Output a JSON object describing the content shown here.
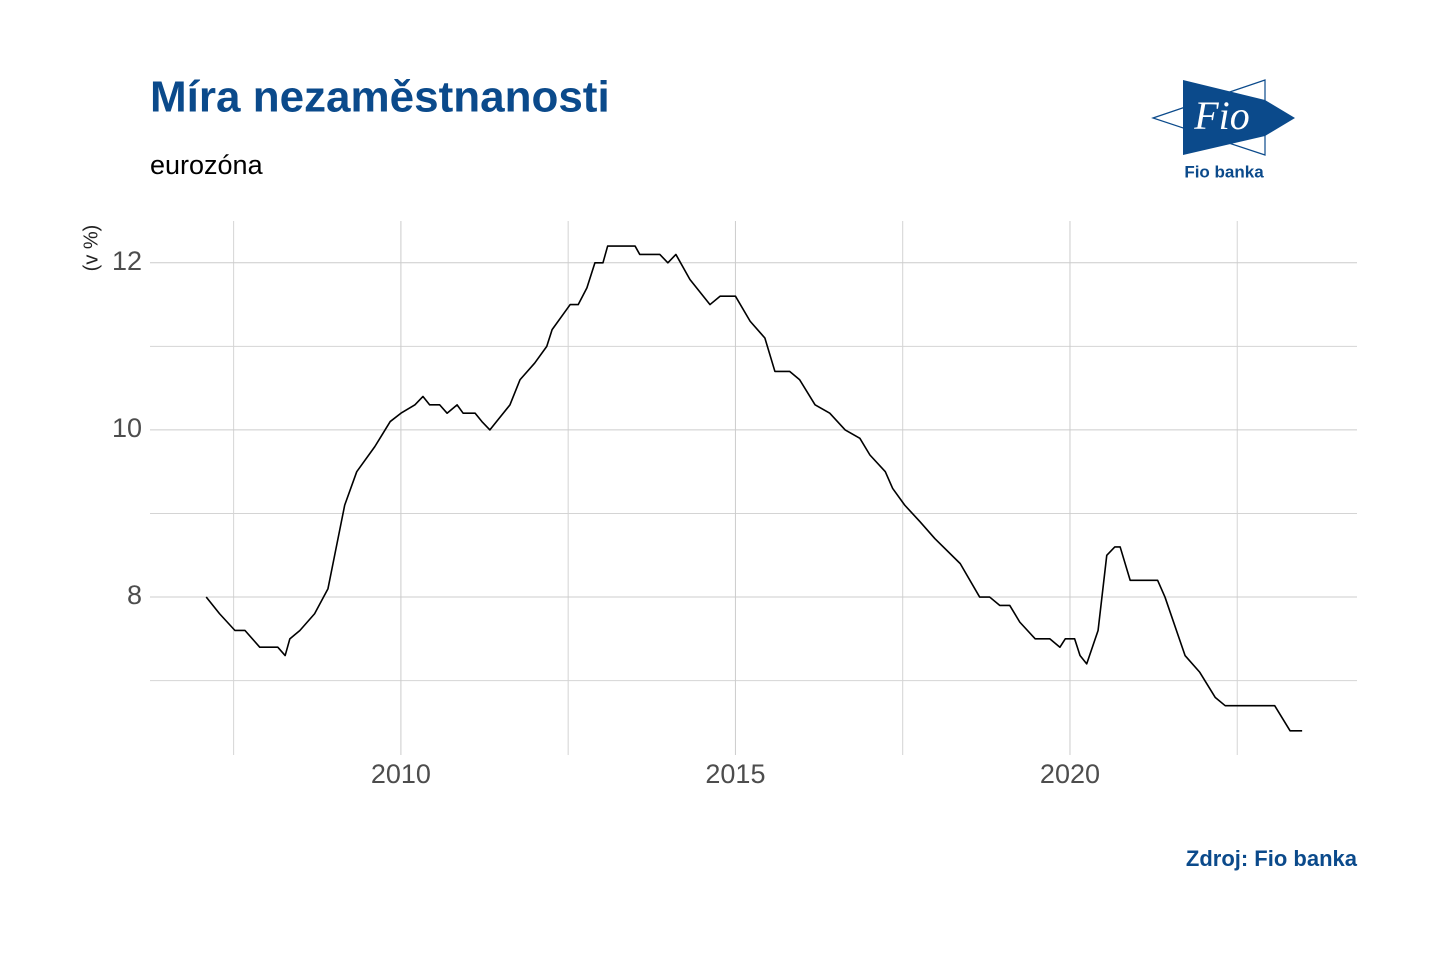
{
  "chart_data": {
    "type": "line",
    "title": "Míra nezaměstnanosti",
    "subtitle": "eurozóna",
    "y_label": "(v %)",
    "source": "Zdroj: Fio banka",
    "color": "#000000",
    "x": [
      2007.09,
      2007.29,
      2007.52,
      2007.67,
      2007.89,
      2008.16,
      2008.27,
      2008.34,
      2008.49,
      2008.71,
      2008.91,
      2009.01,
      2009.16,
      2009.34,
      2009.61,
      2009.84,
      2010.0,
      2010.21,
      2010.33,
      2010.43,
      2010.58,
      2010.69,
      2010.84,
      2010.93,
      2011.11,
      2011.21,
      2011.33,
      2011.43,
      2011.63,
      2011.78,
      2012.0,
      2012.18,
      2012.26,
      2012.53,
      2012.65,
      2012.78,
      2012.9,
      2013.02,
      2013.09,
      2013.5,
      2013.57,
      2013.87,
      2013.99,
      2014.11,
      2014.32,
      2014.62,
      2014.77,
      2015.0,
      2015.22,
      2015.44,
      2015.59,
      2015.81,
      2015.96,
      2016.19,
      2016.41,
      2016.64,
      2016.86,
      2017.01,
      2017.24,
      2017.35,
      2017.53,
      2017.76,
      2017.98,
      2018.36,
      2018.65,
      2018.8,
      2018.95,
      2019.1,
      2019.25,
      2019.48,
      2019.7,
      2019.85,
      2019.93,
      2020.07,
      2020.15,
      2020.25,
      2020.42,
      2020.55,
      2020.67,
      2020.75,
      2020.9,
      2021.31,
      2021.42,
      2021.72,
      2021.94,
      2022.17,
      2022.32,
      2023.06,
      2023.29,
      2023.47
    ],
    "values": [
      8.0,
      7.8,
      7.6,
      7.6,
      7.4,
      7.4,
      7.3,
      7.5,
      7.6,
      7.8,
      8.1,
      8.5,
      9.1,
      9.5,
      9.8,
      10.1,
      10.2,
      10.3,
      10.4,
      10.3,
      10.3,
      10.2,
      10.3,
      10.2,
      10.2,
      10.1,
      10.0,
      10.1,
      10.3,
      10.6,
      10.8,
      11.0,
      11.2,
      11.5,
      11.5,
      11.7,
      12.0,
      12.0,
      12.2,
      12.2,
      12.1,
      12.1,
      12.0,
      12.1,
      11.8,
      11.5,
      11.6,
      11.6,
      11.3,
      11.1,
      10.7,
      10.7,
      10.6,
      10.3,
      10.2,
      10.0,
      9.9,
      9.7,
      9.5,
      9.3,
      9.1,
      8.9,
      8.7,
      8.4,
      8.0,
      8.0,
      7.9,
      7.9,
      7.7,
      7.5,
      7.5,
      7.4,
      7.5,
      7.5,
      7.3,
      7.2,
      7.6,
      8.5,
      8.6,
      8.6,
      8.2,
      8.2,
      8.0,
      7.3,
      7.1,
      6.8,
      6.7,
      6.7,
      6.4,
      6.4
    ],
    "xlim": [
      2006.25,
      2024.29
    ],
    "xticks": [
      2010,
      2015,
      2020
    ],
    "xminorticks": [
      2007.5,
      2012.5,
      2017.5,
      2022.5
    ],
    "ylim": [
      6.11,
      12.5
    ],
    "yticks": [
      8,
      10,
      12
    ],
    "yminorticks": [
      7,
      9,
      11
    ],
    "grid": true
  },
  "logo": {
    "mark": "Fio",
    "name": "Fio banka"
  }
}
